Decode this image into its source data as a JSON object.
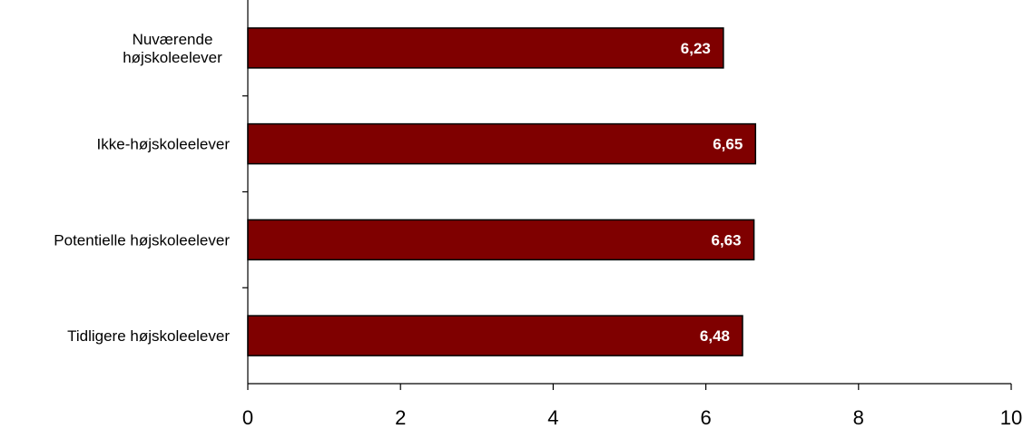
{
  "chart_data": {
    "type": "bar",
    "orientation": "horizontal",
    "categories": [
      "Nuværende højskoleelever",
      "Ikke-højskoleelever",
      "Potentielle højskoleelever",
      "Tidligere højskoleelever"
    ],
    "category_lines": [
      [
        "Nuværende",
        "højskoleelever"
      ],
      [
        "Ikke-højskoleelever"
      ],
      [
        "Potentielle højskoleelever"
      ],
      [
        "Tidligere højskoleelever"
      ]
    ],
    "values": [
      6.23,
      6.65,
      6.63,
      6.48
    ],
    "data_labels": [
      "6,23",
      "6,65",
      "6,63",
      "6,48"
    ],
    "xlim": [
      0,
      10
    ],
    "x_ticks": [
      0,
      2,
      4,
      6,
      8,
      10
    ],
    "x_tick_labels": [
      "0",
      "2",
      "4",
      "6",
      "8",
      "10"
    ],
    "title": "",
    "xlabel": "",
    "ylabel": "",
    "grid": false,
    "legend": "none",
    "bar_color": "#7f0000"
  }
}
